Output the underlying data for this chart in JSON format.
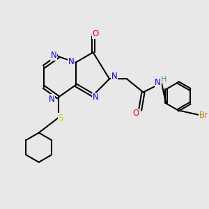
{
  "bg_color": "#e8e8e8",
  "atom_colors": {
    "N": "#0000ff",
    "O": "#ff0000",
    "S": "#cccc00",
    "Br": "#cc8800",
    "H": "#4a9090",
    "C": "#000000"
  },
  "lw": 1.5
}
